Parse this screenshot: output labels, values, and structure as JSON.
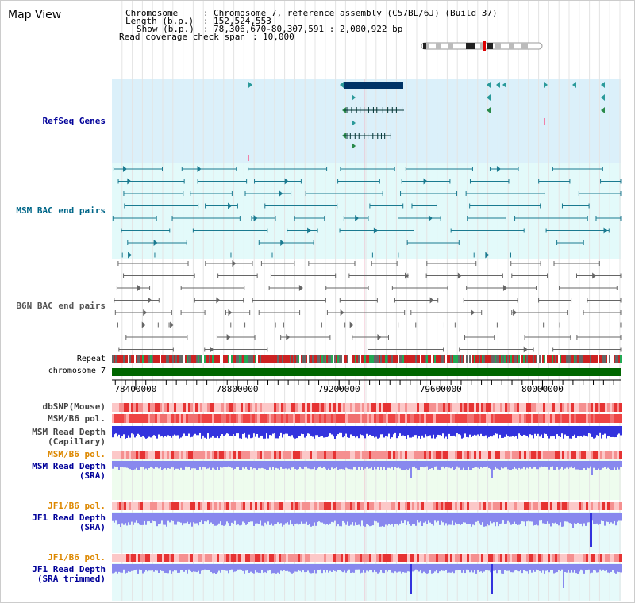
{
  "header": {
    "view_title": "Map View",
    "chromosome_label": "Chromosome",
    "chromosome_value": "Chromosome 7, reference assembly (C57BL/6J) (Build 37)",
    "length_label": "Length (b.p.)",
    "length_value": "152,524,553",
    "show_label": "Show (b.p.)",
    "show_value": "78,306,670-80,307,591 : 2,000,922 bp",
    "coverage_label": "Read coverage check span",
    "coverage_value": "10,000"
  },
  "axis": {
    "ticks": [
      {
        "label": "78400000",
        "value": 78400000
      },
      {
        "label": "78800000",
        "value": 78800000
      },
      {
        "label": "79200000",
        "value": 79200000
      },
      {
        "label": "79600000",
        "value": 79600000
      },
      {
        "label": "80000000",
        "value": 80000000
      }
    ],
    "range": [
      78306670,
      80307591
    ]
  },
  "tracks": {
    "refseq": {
      "label": "RefSeq Genes",
      "color": "#000099"
    },
    "msm_bac": {
      "label": "MSM BAC end pairs",
      "color": "#006688"
    },
    "b6n_bac": {
      "label": "B6N BAC end pairs",
      "color": "#555555"
    },
    "repeat": {
      "label": "Repeat"
    },
    "chromosome": {
      "label": "chromosome 7"
    },
    "dbsnp": {
      "label": "dbSNP(Mouse)"
    },
    "msm_b6_pol": {
      "label": "MSM/B6 pol."
    },
    "msm_depth_cap": {
      "label1": "MSM Read Depth",
      "label2": "(Capillary)"
    },
    "msm_b6_pol2": {
      "label": "MSM/B6 pol."
    },
    "msm_depth_sra": {
      "label1": "MSM Read Depth",
      "label2": "(SRA)"
    },
    "jf1_pol": {
      "label": "JF1/B6 pol."
    },
    "jf1_depth_sra": {
      "label1": "JF1 Read Depth",
      "label2": "(SRA)"
    },
    "jf1_pol2": {
      "label": "JF1/B6 pol."
    },
    "jf1_depth_trim": {
      "label1": "JF1 Read Depth",
      "label2": "(SRA trimmed)"
    }
  },
  "colors": {
    "refseq_bg": "#dbf0fa",
    "msm_bg": "#e3fafa",
    "gene_dark": "#003366",
    "chromosome_bar": "#006600",
    "depth_blue": "#3333dd",
    "depth_light": "#8888ee",
    "pol_orange": "#dd8800",
    "label_blue": "#000099",
    "label_teal": "#006688"
  }
}
